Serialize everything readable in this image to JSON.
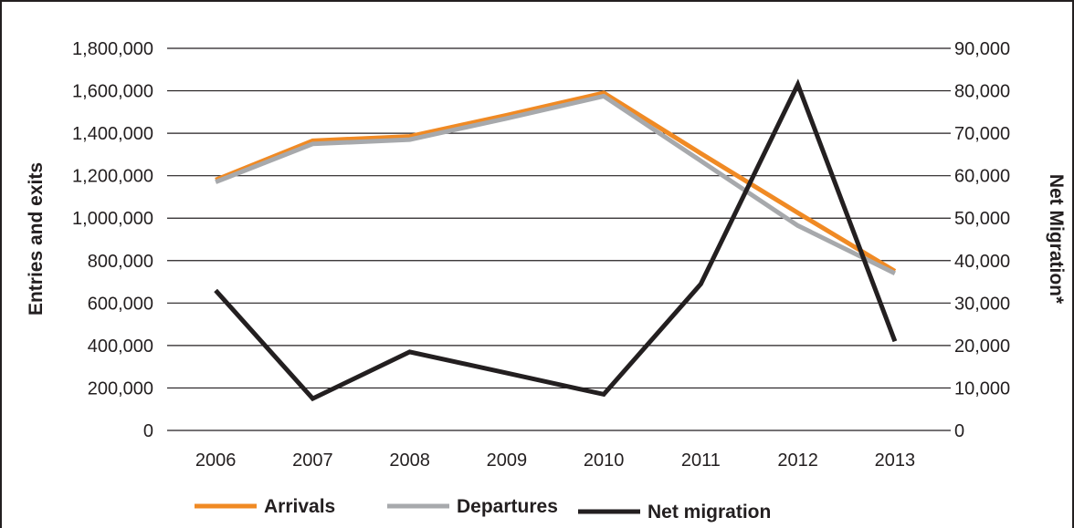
{
  "chart_data": {
    "type": "line",
    "categories": [
      "2006",
      "2007",
      "2008",
      "2009",
      "2010",
      "2011",
      "2012",
      "2013"
    ],
    "y_left": {
      "label": "Entries and exits",
      "range": [
        0,
        1800000
      ],
      "tick_labels": [
        "0",
        "200,000",
        "400,000",
        "600,000",
        "800,000",
        "1,000,000",
        "1,200,000",
        "1,400,000",
        "1,600,000",
        "1,800,000"
      ]
    },
    "y_right": {
      "label": "Net Migration*",
      "range": [
        0,
        90000
      ],
      "tick_labels": [
        "0",
        "10,000",
        "20,000",
        "30,000",
        "40,000",
        "50,000",
        "60,000",
        "70,000",
        "80,000",
        "90,000"
      ]
    },
    "series": [
      {
        "name": "Arrivals",
        "axis": "left",
        "color": "#f08a24",
        "values": [
          1180000,
          1365000,
          1385000,
          1485000,
          1590000,
          1305000,
          1025000,
          750000
        ]
      },
      {
        "name": "Departures",
        "axis": "left",
        "color": "#a7a9ac",
        "values": [
          1170000,
          1350000,
          1370000,
          1470000,
          1575000,
          1270000,
          965000,
          740000
        ]
      },
      {
        "name": "Net migration",
        "axis": "right",
        "color": "#231f20",
        "values": [
          33000,
          7500,
          18500,
          13500,
          8500,
          34500,
          81500,
          21000
        ]
      }
    ],
    "grid": true,
    "legend_position": "bottom"
  }
}
